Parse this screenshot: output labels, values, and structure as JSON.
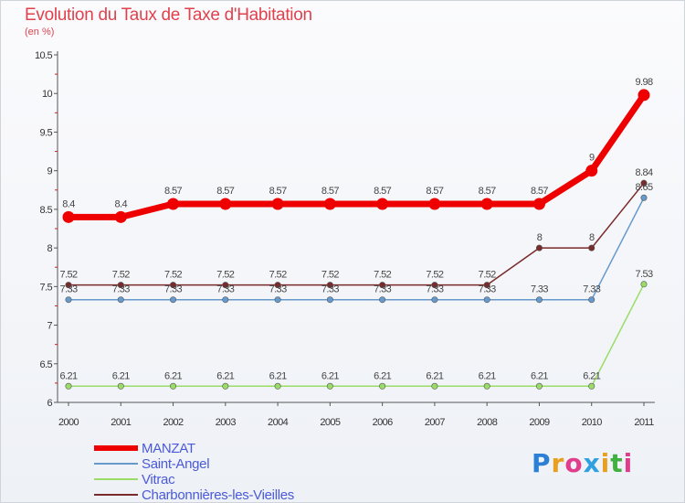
{
  "title": "Evolution du Taux de Taxe d'Habitation",
  "unit": "(en %)",
  "logo_text": "Proxiti",
  "chart_data": {
    "type": "line",
    "x": [
      "2000",
      "2001",
      "2002",
      "2003",
      "2004",
      "2005",
      "2006",
      "2007",
      "2008",
      "2009",
      "2010",
      "2011"
    ],
    "ylim": [
      6,
      10.5
    ],
    "yticks": [
      "6",
      "6.5",
      "7",
      "7.5",
      "8",
      "8.5",
      "9",
      "9.5",
      "10",
      "10.5"
    ],
    "series": [
      {
        "name": "MANZAT",
        "color": "#ee0000",
        "values": [
          8.4,
          8.4,
          8.57,
          8.57,
          8.57,
          8.57,
          8.57,
          8.57,
          8.57,
          8.57,
          9,
          9.98
        ],
        "labels": [
          "8.4",
          "8.4",
          "8.57",
          "8.57",
          "8.57",
          "8.57",
          "8.57",
          "8.57",
          "8.57",
          "8.57",
          "9",
          "9.98"
        ]
      },
      {
        "name": "Saint-Angel",
        "color": "#6699cc",
        "values": [
          7.33,
          7.33,
          7.33,
          7.33,
          7.33,
          7.33,
          7.33,
          7.33,
          7.33,
          7.33,
          7.33,
          8.65
        ],
        "labels": [
          "7.33",
          "7.33",
          "7.33",
          "7.33",
          "7.33",
          "7.33",
          "7.33",
          "7.33",
          "7.33",
          "7.33",
          "7.33",
          "8.65"
        ]
      },
      {
        "name": "Vitrac",
        "color": "#99dd66",
        "values": [
          6.21,
          6.21,
          6.21,
          6.21,
          6.21,
          6.21,
          6.21,
          6.21,
          6.21,
          6.21,
          6.21,
          7.53
        ],
        "labels": [
          "6.21",
          "6.21",
          "6.21",
          "6.21",
          "6.21",
          "6.21",
          "6.21",
          "6.21",
          "6.21",
          "6.21",
          "6.21",
          "7.53"
        ]
      },
      {
        "name": "Charbonnières-les-Vieilles",
        "color": "#7a2a2a",
        "values": [
          7.52,
          7.52,
          7.52,
          7.52,
          7.52,
          7.52,
          7.52,
          7.52,
          7.52,
          8,
          8,
          8.84
        ],
        "labels": [
          "7.52",
          "7.52",
          "7.52",
          "7.52",
          "7.52",
          "7.52",
          "7.52",
          "7.52",
          "7.52",
          "8",
          "8",
          "8.84"
        ]
      }
    ]
  }
}
